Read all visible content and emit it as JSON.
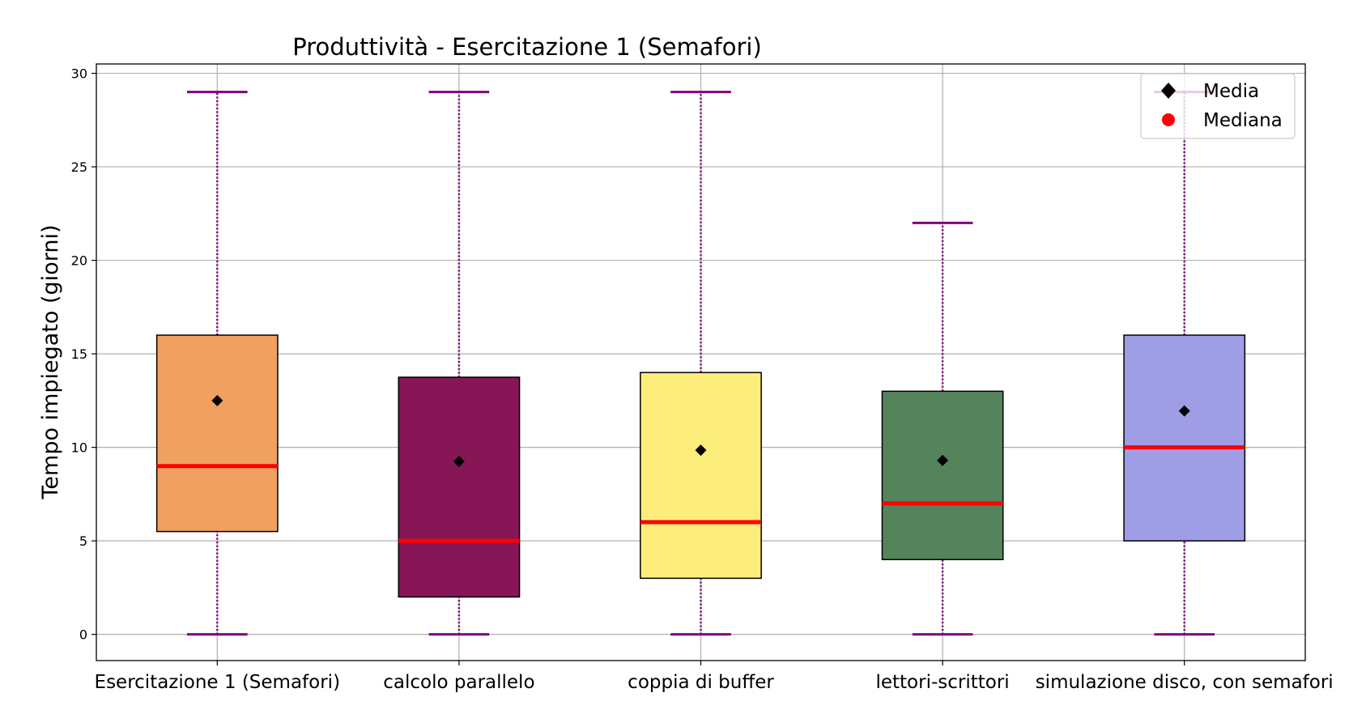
{
  "chart_data": {
    "type": "box",
    "title": "Produttività - Esercitazione 1 (Semafori)",
    "xlabel": "",
    "ylabel": "Tempo impiegato (giorni)",
    "ylim": [
      -1.4,
      30.5
    ],
    "yticks": [
      0,
      5,
      10,
      15,
      20,
      25,
      30
    ],
    "grid": true,
    "legend": {
      "placement": "top-right",
      "entries": [
        {
          "label": "Media",
          "marker": "diamond",
          "color": "#000000"
        },
        {
          "label": "Mediana",
          "marker": "circle",
          "color": "#ff0000"
        }
      ]
    },
    "colors": {
      "whisker": "#800080",
      "median": "#ff0000",
      "mean": "#000000",
      "grid": "#b0b0b0"
    },
    "boxes": [
      {
        "category": "Esercitazione 1 (Semafori)",
        "min": 0,
        "q1": 5.5,
        "median": 9,
        "q3": 16,
        "max": 29,
        "mean": 12.5,
        "color": "#f0a060"
      },
      {
        "category": "calcolo parallelo",
        "min": 0,
        "q1": 2,
        "median": 5,
        "q3": 13.75,
        "max": 29,
        "mean": 9.25,
        "color": "#861656"
      },
      {
        "category": "coppia di buffer",
        "min": 0,
        "q1": 3,
        "median": 6,
        "q3": 14,
        "max": 29,
        "mean": 9.85,
        "color": "#fded7a"
      },
      {
        "category": "lettori-scrittori",
        "min": 0,
        "q1": 4,
        "median": 7,
        "q3": 13,
        "max": 22,
        "mean": 9.3,
        "color": "#55845c"
      },
      {
        "category": "simulazione disco, con semafori",
        "min": 0,
        "q1": 5,
        "median": 10,
        "q3": 16,
        "max": 29,
        "mean": 11.95,
        "color": "#9f9de6"
      }
    ]
  }
}
